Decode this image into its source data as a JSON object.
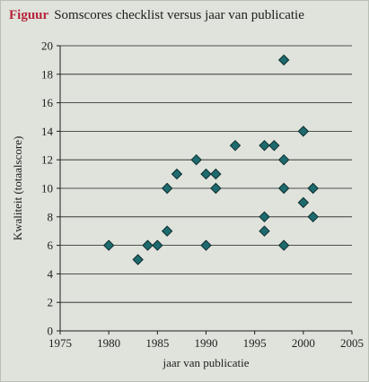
{
  "figure": {
    "label": "Figuur",
    "caption": "Somscores checklist versus jaar van publicatie"
  },
  "colors": {
    "background": "#dfe3db",
    "label_accent": "#b5253a",
    "marker_fill": "#1d6b6e",
    "marker_stroke": "#0f2c2e",
    "grid": "#1e1e1e"
  },
  "chart_data": {
    "type": "scatter",
    "xlabel": "jaar van publicatie",
    "ylabel": "Kwaliteit (totaalscore)",
    "xlim": [
      1975,
      2005
    ],
    "ylim": [
      0,
      20
    ],
    "xticks": [
      1975,
      1980,
      1985,
      1990,
      1995,
      2000,
      2005
    ],
    "yticks": [
      0,
      2,
      4,
      6,
      8,
      10,
      12,
      14,
      16,
      18,
      20
    ],
    "grid": "horizontal",
    "marker": "diamond",
    "points": [
      {
        "x": 1980,
        "y": 6
      },
      {
        "x": 1983,
        "y": 5
      },
      {
        "x": 1984,
        "y": 6
      },
      {
        "x": 1985,
        "y": 6
      },
      {
        "x": 1986,
        "y": 7
      },
      {
        "x": 1986,
        "y": 10
      },
      {
        "x": 1987,
        "y": 11
      },
      {
        "x": 1989,
        "y": 12
      },
      {
        "x": 1990,
        "y": 11
      },
      {
        "x": 1990,
        "y": 6
      },
      {
        "x": 1991,
        "y": 11
      },
      {
        "x": 1991,
        "y": 10
      },
      {
        "x": 1993,
        "y": 13
      },
      {
        "x": 1996,
        "y": 13
      },
      {
        "x": 1996,
        "y": 8
      },
      {
        "x": 1996,
        "y": 7
      },
      {
        "x": 1997,
        "y": 13
      },
      {
        "x": 1998,
        "y": 19
      },
      {
        "x": 1998,
        "y": 12
      },
      {
        "x": 1998,
        "y": 10
      },
      {
        "x": 1998,
        "y": 6
      },
      {
        "x": 2000,
        "y": 14
      },
      {
        "x": 2000,
        "y": 9
      },
      {
        "x": 2001,
        "y": 10
      },
      {
        "x": 2001,
        "y": 8
      }
    ]
  }
}
